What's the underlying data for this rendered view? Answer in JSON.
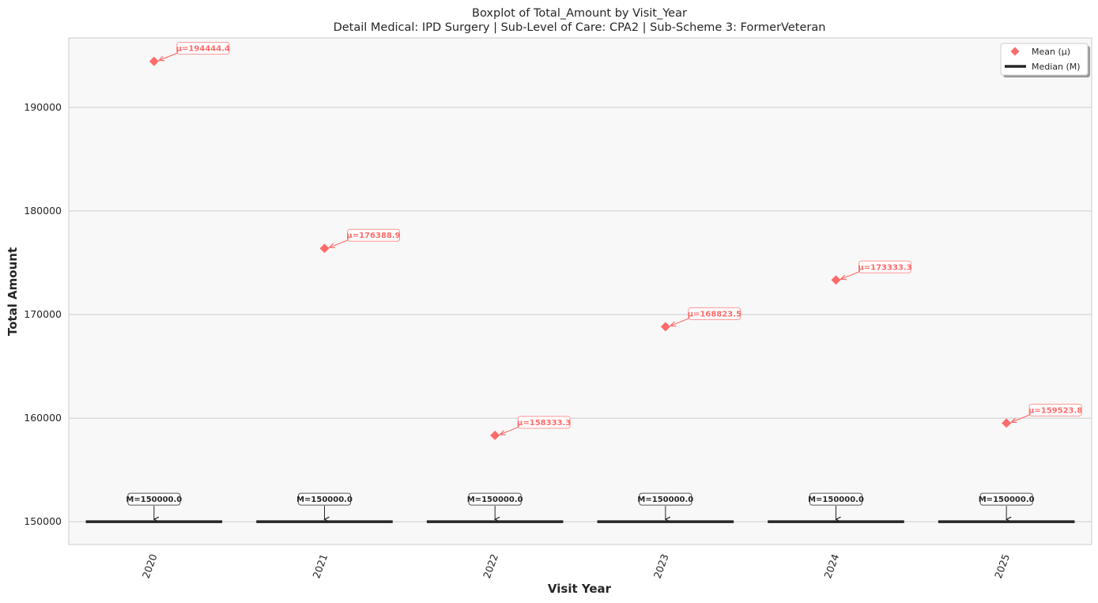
{
  "chart_data": {
    "type": "box",
    "title": "Boxplot of Total_Amount by Visit_Year",
    "subtitle": "Detail Medical: IPD Surgery | Sub-Level of Care: CPA2 | Sub-Scheme 3: FormerVeteran",
    "xlabel": "Visit Year",
    "ylabel": "Total Amount",
    "categories": [
      "2020",
      "2021",
      "2022",
      "2023",
      "2024",
      "2025"
    ],
    "median": [
      150000.0,
      150000.0,
      150000.0,
      150000.0,
      150000.0,
      150000.0
    ],
    "mean": [
      194444.4,
      176388.9,
      158333.3,
      168823.5,
      173333.3,
      159523.8
    ],
    "median_labels": [
      "M=150000.0",
      "M=150000.0",
      "M=150000.0",
      "M=150000.0",
      "M=150000.0",
      "M=150000.0"
    ],
    "mean_labels": [
      "μ=194444.4",
      "μ=176388.9",
      "μ=158333.3",
      "μ=168823.5",
      "μ=173333.3",
      "μ=159523.8"
    ],
    "ylim": [
      147800,
      196700
    ],
    "yticks": [
      150000,
      160000,
      170000,
      180000,
      190000
    ],
    "ytick_labels": [
      "150000",
      "160000",
      "170000",
      "180000",
      "190000"
    ],
    "grid": true,
    "legend": {
      "placement": "top-right",
      "entries": [
        {
          "label": "Mean (μ)",
          "marker": "diamond",
          "color": "#ff6b6b"
        },
        {
          "label": "Median (M)",
          "marker": "line",
          "color": "#262626"
        }
      ]
    },
    "colors": {
      "mean": "#ff6b6b",
      "median": "#262626",
      "plot_bg": "#f8f8f8",
      "grid": "#cccccc"
    }
  }
}
